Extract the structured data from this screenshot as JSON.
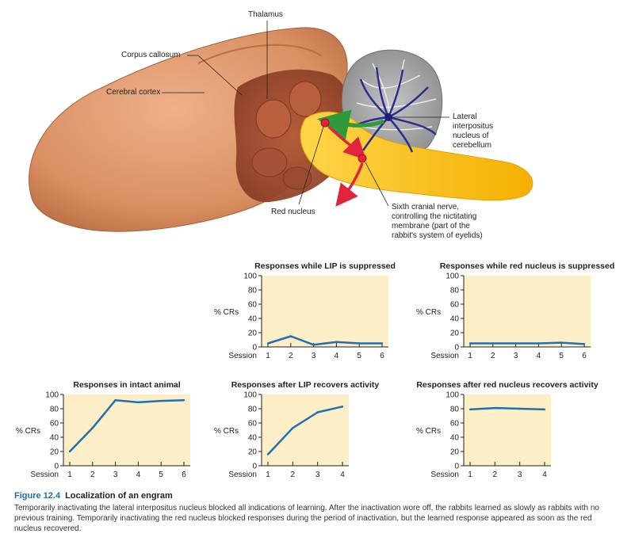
{
  "brain": {
    "labels": {
      "thalamus": "Thalamus",
      "corpus_callosum": "Corpus callosum",
      "cerebral_cortex": "Cerebral cortex",
      "red_nucleus": "Red nucleus",
      "lip": [
        "Lateral",
        "interpositus",
        "nucleus of",
        "cerebellum"
      ],
      "sixth_nerve": [
        "Sixth cranial nerve,",
        "controlling the nictitating",
        "membrane (part of the",
        "rabbit's system of eyelids)"
      ]
    },
    "colors": {
      "cortex": "#d98f62",
      "cerebellum": "#9a9a9a",
      "brainstem": "#f5b700",
      "nerve_arrows": "#2a2f8f",
      "green_arrow": "#2e9a3c",
      "red_arrow": "#e0243c"
    }
  },
  "chart_style": {
    "plot_bg": "#fcefc8",
    "line_color": "#1f6fb2",
    "y_axis_label": "% CRs",
    "x_axis_label": "Session"
  },
  "chart_data": [
    {
      "id": "lip-suppressed",
      "type": "line",
      "title": "Responses while LIP is suppressed",
      "ylabel": "% CRs",
      "xlabel": "Session",
      "x": [
        1,
        2,
        3,
        4,
        5,
        6
      ],
      "values": [
        5,
        15,
        3,
        7,
        5,
        5
      ],
      "ylim": [
        0,
        100
      ],
      "yticks": [
        0,
        20,
        40,
        60,
        80,
        100
      ]
    },
    {
      "id": "red-suppressed",
      "type": "line",
      "title": "Responses while red nucleus is suppressed",
      "ylabel": "% CRs",
      "xlabel": "Session",
      "x": [
        1,
        2,
        3,
        4,
        5,
        6
      ],
      "values": [
        5,
        5,
        5,
        5,
        6,
        4
      ],
      "ylim": [
        0,
        100
      ],
      "yticks": [
        0,
        20,
        40,
        60,
        80,
        100
      ]
    },
    {
      "id": "intact",
      "type": "line",
      "title": "Responses in intact animal",
      "ylabel": "% CRs",
      "xlabel": "Session",
      "x": [
        1,
        2,
        3,
        4,
        5,
        6
      ],
      "values": [
        20,
        53,
        92,
        89,
        91,
        92
      ],
      "ylim": [
        0,
        100
      ],
      "yticks": [
        0,
        20,
        40,
        60,
        80,
        100
      ]
    },
    {
      "id": "lip-recovers",
      "type": "line",
      "title": "Responses after LIP recovers activity",
      "ylabel": "% CRs",
      "xlabel": "Session",
      "x": [
        1,
        2,
        3,
        4
      ],
      "values": [
        16,
        53,
        75,
        83
      ],
      "ylim": [
        0,
        100
      ],
      "yticks": [
        0,
        20,
        40,
        60,
        80,
        100
      ]
    },
    {
      "id": "red-recovers",
      "type": "line",
      "title": "Responses after red nucleus recovers activity",
      "ylabel": "% CRs",
      "xlabel": "Session",
      "x": [
        1,
        2,
        3,
        4
      ],
      "values": [
        79,
        81,
        80,
        79
      ],
      "ylim": [
        0,
        100
      ],
      "yticks": [
        0,
        20,
        40,
        60,
        80,
        100
      ]
    }
  ],
  "caption": {
    "figure_number": "Figure 12.4",
    "figure_title": "Localization of an engram",
    "text": "Temporarily inactivating the lateral interpositus nucleus blocked all indications of learning. After the inactivation wore off, the rabbits learned as slowly as rabbits with no previous training. Temporarily inactivating the red nucleus blocked responses during the period of inactivation, but the learned response appeared as soon as the red nucleus recovered."
  }
}
